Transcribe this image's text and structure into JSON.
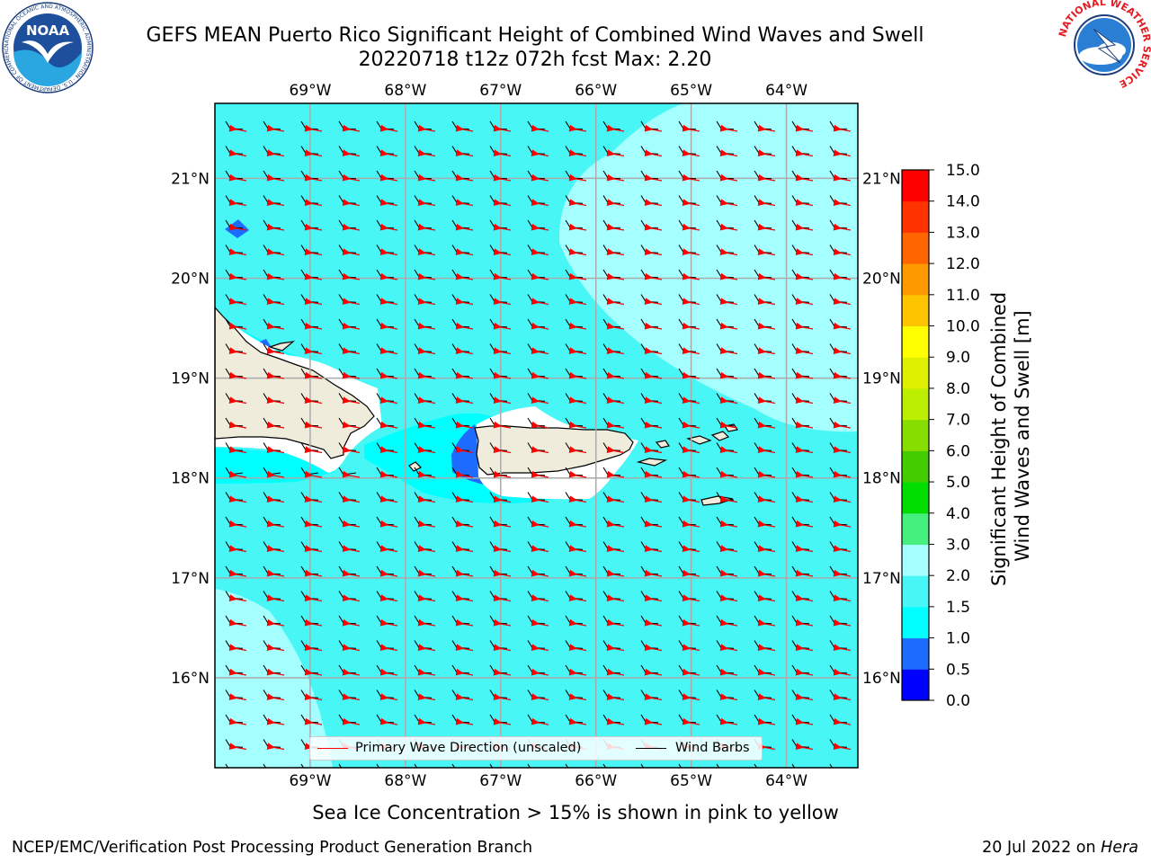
{
  "header": {
    "title_line1": "GEFS MEAN Puerto Rico Significant Height of Combined Wind Waves and Swell",
    "title_line2": "20220718 t12z 072h fcst   Max: 2.20"
  },
  "logos": {
    "left": {
      "text": "NOAA",
      "ring_text": "NATIONAL OCEANIC AND ATMOSPHERIC ADMINISTRATION · U.S. DEPARTMENT OF COMMERCE"
    },
    "right": {
      "ring_text": "NATIONAL WEATHER SERVICE"
    }
  },
  "map": {
    "lon_labels": [
      "69°W",
      "68°W",
      "67°W",
      "66°W",
      "65°W",
      "64°W"
    ],
    "lat_labels": [
      "21°N",
      "20°N",
      "19°N",
      "18°N",
      "17°N",
      "16°N"
    ],
    "lon_range": [
      -70,
      -63.25
    ],
    "lat_range": [
      15.1,
      21.75
    ],
    "field_colors": {
      "c0_05": "#0000ff",
      "c05_1": "#1e6cff",
      "c1_15": "#00ffff",
      "c15_2": "#48f6f6",
      "c2_3": "#a6ffff",
      "land": "#efecdc"
    },
    "legend": {
      "wave_direction": "Primary Wave Direction (unscaled)",
      "wind_barbs": "Wind Barbs",
      "wave_direction_color": "#ff0000",
      "wind_barbs_color": "#000000"
    }
  },
  "colorbar": {
    "label_line1": "Significant Height of Combined",
    "label_line2": "Wind Waves and Swell [m]",
    "ticks": [
      "0.0",
      "0.5",
      "1.0",
      "1.5",
      "2.0",
      "3.0",
      "4.0",
      "5.0",
      "6.0",
      "7.0",
      "8.0",
      "9.0",
      "10.0",
      "11.0",
      "12.0",
      "13.0",
      "14.0",
      "15.0"
    ],
    "colors": [
      "#0000ff",
      "#1e6cff",
      "#00ffff",
      "#48f6f6",
      "#a6ffff",
      "#46f07e",
      "#00dd00",
      "#44cc00",
      "#88dd00",
      "#bbee00",
      "#ddf000",
      "#ffff00",
      "#ffc400",
      "#ff9900",
      "#ff6600",
      "#ff3300",
      "#ff0000"
    ]
  },
  "notes": {
    "sea_ice": "Sea Ice Concentration > 15% is shown in pink to yellow"
  },
  "footer": {
    "left": "NCEP/EMC/Verification Post Processing Product Generation Branch",
    "date": "20 Jul 2022 on",
    "host": "Hera"
  }
}
